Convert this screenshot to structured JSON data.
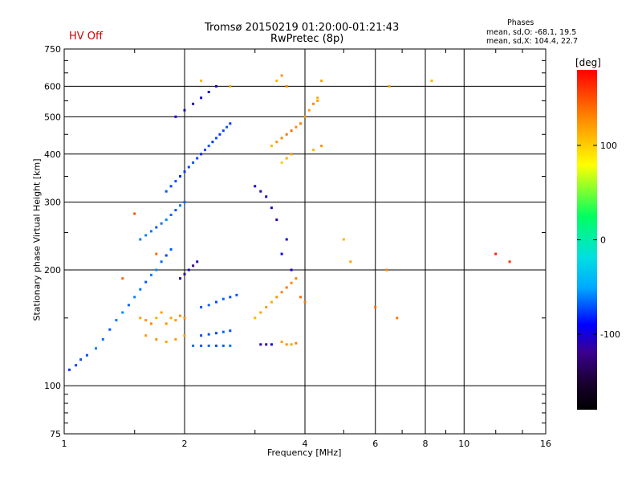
{
  "header": {
    "status": "HV Off",
    "title_line1": "Tromsø 20150219 01:20:00-01:21:43",
    "title_line2": "RwPretec (8p)",
    "phase_heading": "Phases",
    "phase_line1": "mean, sd,O: -68.1, 19.5",
    "phase_line2": "mean, sd,X: 104.4, 22.7"
  },
  "colorbar": {
    "unit": "[deg]",
    "ticks": [
      {
        "value": 100,
        "label": "100"
      },
      {
        "value": 0,
        "label": "0"
      },
      {
        "value": -100,
        "label": "-100"
      }
    ],
    "range": [
      -180,
      180
    ],
    "colormap": [
      "#000000",
      "#1a0030",
      "#3a0090",
      "#0000ff",
      "#00aaff",
      "#00e0e0",
      "#00ff60",
      "#ffff00",
      "#ff9000",
      "#ff0000"
    ]
  },
  "chart_data": {
    "type": "scatter",
    "title": "Tromsø 20150219 01:20:00-01:21:43",
    "subtitle": "RwPretec (8p)",
    "xlabel": "Frequency [MHz]",
    "ylabel": "Stationary phase Virtual Height [km]",
    "xscale": "log2",
    "yscale": "log",
    "xlim": [
      1,
      16
    ],
    "ylim": [
      75,
      750
    ],
    "xticks": [
      1,
      2,
      4,
      6,
      8,
      10,
      16
    ],
    "xtick_labels": [
      "1",
      "2",
      "4",
      "6",
      "8",
      "10",
      "16"
    ],
    "yticks": [
      75,
      100,
      200,
      300,
      400,
      500,
      600,
      750
    ],
    "ytick_labels": [
      "75",
      "100",
      "200",
      "300",
      "400",
      "500",
      "600",
      "750"
    ],
    "grid": true,
    "series": [
      {
        "points": [
          [
            1.03,
            110,
            -80
          ],
          [
            1.07,
            113,
            -75
          ],
          [
            1.1,
            117,
            -70
          ],
          [
            1.14,
            120,
            -72
          ],
          [
            1.2,
            125,
            -60
          ],
          [
            1.25,
            132,
            -65
          ],
          [
            1.3,
            140,
            -70
          ],
          [
            1.35,
            148,
            -62
          ],
          [
            1.4,
            155,
            -58
          ],
          [
            1.45,
            162,
            -66
          ],
          [
            1.5,
            170,
            -60
          ],
          [
            1.55,
            178,
            -64
          ],
          [
            1.6,
            186,
            -70
          ],
          [
            1.65,
            194,
            -62
          ],
          [
            1.7,
            200,
            -58
          ],
          [
            1.75,
            210,
            -66
          ],
          [
            1.8,
            218,
            -75
          ],
          [
            1.85,
            226,
            -68
          ],
          [
            1.55,
            240,
            -62
          ],
          [
            1.6,
            246,
            -60
          ],
          [
            1.65,
            252,
            -64
          ],
          [
            1.7,
            258,
            -70
          ],
          [
            1.75,
            264,
            -62
          ],
          [
            1.8,
            270,
            -58
          ],
          [
            1.85,
            278,
            -66
          ],
          [
            1.9,
            286,
            -72
          ],
          [
            1.95,
            294,
            -64
          ],
          [
            2.0,
            300,
            -68
          ],
          [
            1.8,
            320,
            -70
          ],
          [
            1.85,
            330,
            -75
          ],
          [
            1.9,
            340,
            -72
          ],
          [
            1.95,
            350,
            -80
          ],
          [
            2.0,
            360,
            -78
          ],
          [
            2.05,
            370,
            -74
          ],
          [
            2.1,
            380,
            -70
          ],
          [
            2.15,
            390,
            -76
          ],
          [
            2.2,
            400,
            -82
          ],
          [
            2.25,
            410,
            -74
          ],
          [
            2.3,
            420,
            -70
          ],
          [
            2.35,
            430,
            -78
          ],
          [
            2.4,
            440,
            -72
          ],
          [
            2.45,
            450,
            -76
          ],
          [
            2.5,
            460,
            -74
          ],
          [
            2.55,
            470,
            -70
          ],
          [
            2.6,
            480,
            -78
          ],
          [
            1.9,
            500,
            -100
          ],
          [
            2.0,
            520,
            -110
          ],
          [
            2.1,
            540,
            -105
          ],
          [
            2.2,
            560,
            -95
          ],
          [
            2.3,
            580,
            -100
          ],
          [
            2.4,
            600,
            -108
          ],
          [
            1.95,
            190,
            -110
          ],
          [
            2.0,
            195,
            -115
          ],
          [
            2.05,
            200,
            -108
          ],
          [
            2.1,
            205,
            -120
          ],
          [
            2.15,
            210,
            -112
          ],
          [
            2.2,
            160,
            -70
          ],
          [
            2.3,
            162,
            -66
          ],
          [
            2.4,
            165,
            -72
          ],
          [
            2.5,
            168,
            -68
          ],
          [
            2.6,
            170,
            -74
          ],
          [
            2.7,
            172,
            -70
          ],
          [
            2.2,
            135,
            -72
          ],
          [
            2.3,
            136,
            -70
          ],
          [
            2.4,
            137,
            -74
          ],
          [
            2.5,
            138,
            -68
          ],
          [
            2.6,
            139,
            -72
          ],
          [
            2.1,
            127,
            -65
          ],
          [
            2.2,
            127,
            -70
          ],
          [
            2.3,
            127,
            -66
          ],
          [
            2.4,
            127,
            -72
          ],
          [
            2.5,
            127,
            -68
          ],
          [
            2.6,
            127,
            -64
          ],
          [
            3.1,
            128,
            -110
          ],
          [
            3.2,
            128,
            -118
          ],
          [
            3.3,
            128,
            -105
          ],
          [
            3.0,
            330,
            -105
          ],
          [
            3.1,
            320,
            -112
          ],
          [
            3.2,
            310,
            -100
          ],
          [
            3.3,
            290,
            -108
          ],
          [
            3.4,
            270,
            -115
          ],
          [
            3.6,
            240,
            -100
          ],
          [
            3.5,
            220,
            -95
          ],
          [
            3.7,
            200,
            -100
          ]
        ]
      },
      {
        "points": [
          [
            1.55,
            150,
            120
          ],
          [
            1.6,
            148,
            125
          ],
          [
            1.65,
            145,
            130
          ],
          [
            1.7,
            150,
            115
          ],
          [
            1.75,
            155,
            120
          ],
          [
            1.8,
            145,
            125
          ],
          [
            1.85,
            150,
            118
          ],
          [
            1.9,
            148,
            122
          ],
          [
            1.95,
            152,
            126
          ],
          [
            2.0,
            150,
            128
          ],
          [
            1.6,
            135,
            120
          ],
          [
            1.7,
            132,
            125
          ],
          [
            1.8,
            130,
            118
          ],
          [
            1.9,
            132,
            124
          ],
          [
            2.0,
            135,
            120
          ],
          [
            3.0,
            150,
            110
          ],
          [
            3.1,
            155,
            118
          ],
          [
            3.2,
            160,
            122
          ],
          [
            3.3,
            165,
            115
          ],
          [
            3.4,
            170,
            125
          ],
          [
            3.5,
            175,
            130
          ],
          [
            3.6,
            180,
            135
          ],
          [
            3.7,
            185,
            128
          ],
          [
            3.8,
            190,
            132
          ],
          [
            3.9,
            170,
            140
          ],
          [
            4.0,
            165,
            135
          ],
          [
            3.5,
            130,
            120
          ],
          [
            3.6,
            128,
            125
          ],
          [
            3.7,
            128,
            118
          ],
          [
            3.8,
            129,
            130
          ],
          [
            3.3,
            420,
            110
          ],
          [
            3.4,
            430,
            125
          ],
          [
            3.5,
            440,
            130
          ],
          [
            3.6,
            450,
            135
          ],
          [
            3.7,
            460,
            140
          ],
          [
            3.8,
            470,
            128
          ],
          [
            3.9,
            480,
            132
          ],
          [
            4.0,
            500,
            125
          ],
          [
            4.1,
            520,
            120
          ],
          [
            4.2,
            540,
            130
          ],
          [
            4.3,
            550,
            118
          ],
          [
            3.5,
            380,
            100
          ],
          [
            3.6,
            390,
            115
          ],
          [
            3.7,
            400,
            120
          ],
          [
            4.2,
            410,
            110
          ],
          [
            4.4,
            420,
            125
          ],
          [
            4.3,
            560,
            115
          ],
          [
            4.4,
            620,
            120
          ],
          [
            3.4,
            620,
            110
          ],
          [
            3.5,
            640,
            125
          ],
          [
            3.6,
            600,
            130
          ],
          [
            1.4,
            190,
            140
          ],
          [
            1.5,
            280,
            150
          ],
          [
            1.7,
            220,
            140
          ],
          [
            2.2,
            620,
            110
          ],
          [
            2.6,
            600,
            120
          ],
          [
            6.0,
            160,
            140
          ],
          [
            6.4,
            200,
            130
          ],
          [
            6.8,
            150,
            135
          ],
          [
            5.0,
            240,
            110
          ],
          [
            5.2,
            210,
            120
          ],
          [
            12.0,
            220,
            170
          ],
          [
            13.0,
            210,
            160
          ],
          [
            6.5,
            600,
            120
          ],
          [
            8.3,
            620,
            110
          ]
        ]
      }
    ]
  }
}
